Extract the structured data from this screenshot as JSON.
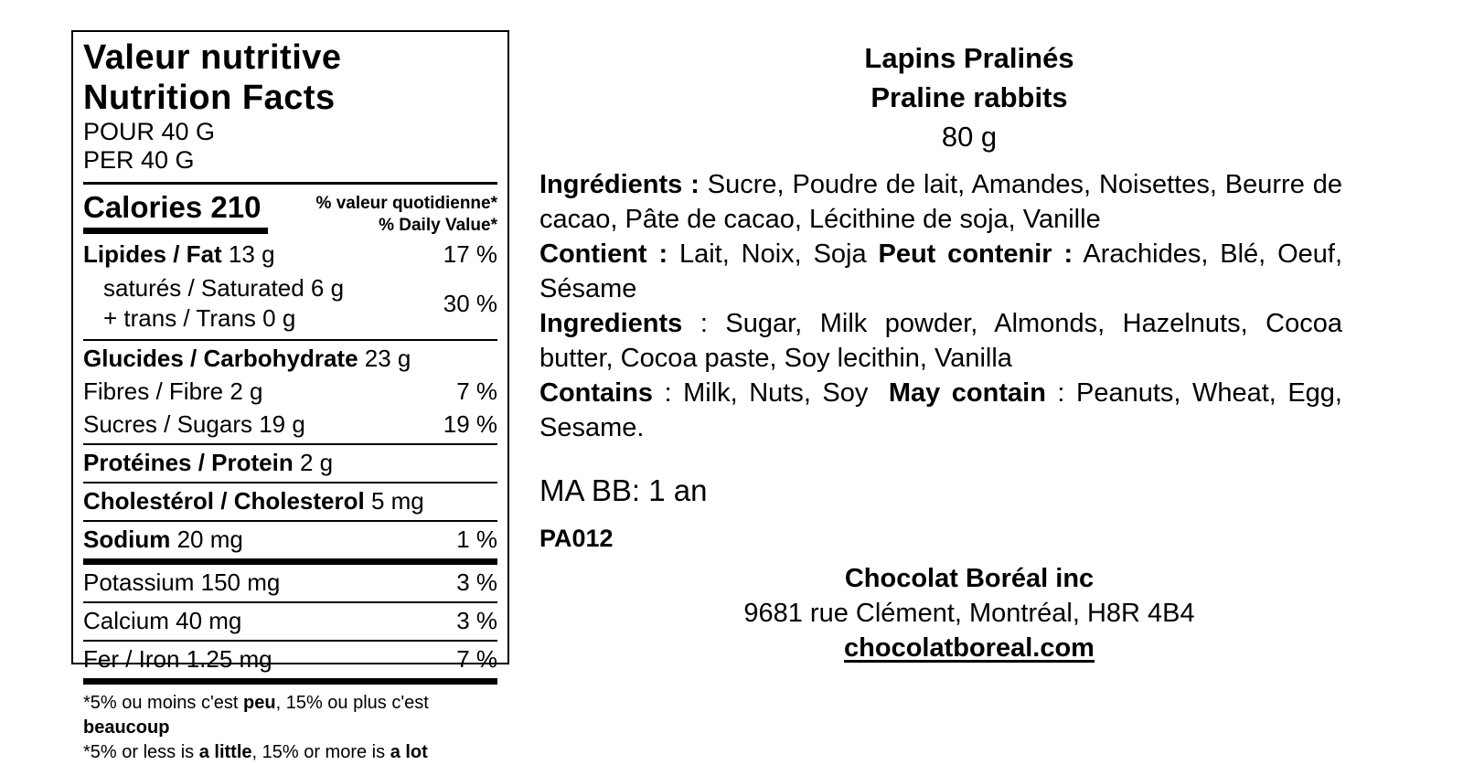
{
  "nutrition_label": {
    "title_fr": "Valeur nutritive",
    "title_en": "Nutrition Facts",
    "serving_fr": "POUR 40 G",
    "serving_en": "PER 40 G",
    "calories_label": "Calories",
    "calories_value": "210",
    "dv_header_fr": "% valeur quotidienne*",
    "dv_header_en": "% Daily Value*",
    "rows": {
      "fat": {
        "name": "Lipides / Fat",
        "amount": "13 g",
        "dv": "17 %"
      },
      "saturated": {
        "line1": "saturés / Saturated 6 g",
        "line2": "+ trans / Trans 0 g",
        "dv": "30 %"
      },
      "carbohydrate": {
        "name": "Glucides / Carbohydrate",
        "amount": "23 g"
      },
      "fibre": {
        "text": "Fibres / Fibre 2 g",
        "dv": "7 %"
      },
      "sugars": {
        "text": "Sucres / Sugars 19 g",
        "dv": "19 %"
      },
      "protein": {
        "name": "Protéines / Protein",
        "amount": "2 g"
      },
      "cholesterol": {
        "name": "Cholestérol / Cholesterol",
        "amount": "5 mg"
      },
      "sodium": {
        "name": "Sodium",
        "amount": "20 mg",
        "dv": "1 %"
      },
      "potassium": {
        "text": "Potassium 150 mg",
        "dv": "3 %"
      },
      "calcium": {
        "text": "Calcium 40 mg",
        "dv": "3 %"
      },
      "iron": {
        "text": "Fer / Iron 1.25 mg",
        "dv": "7 %"
      }
    },
    "footnote_fr": {
      "p1": "*5% ou moins c'est ",
      "b1": "peu",
      "p2": ", 15% ou plus c'est ",
      "b2": "beaucoup"
    },
    "footnote_en": {
      "p1": "*5% or less is ",
      "b1": "a little",
      "p2": ", 15% or more is ",
      "b2": "a lot"
    }
  },
  "product": {
    "name_fr": "Lapins Pralinés",
    "name_en": "Praline rabbits",
    "weight": "80 g",
    "ingredients_fr": {
      "lead": "Ingrédients :",
      "text": " Sucre, Poudre de lait, Amandes, Noisettes, Beurre de cacao, Pâte de cacao, Lécithine de soja, Vanille"
    },
    "allergens_fr": {
      "lead": "Contient :",
      "text": " Lait, Noix, Soja ",
      "lead2": "Peut contenir :",
      "text2": " Arachides, Blé, Oeuf, Sésame"
    },
    "ingredients_en": {
      "lead": "Ingredients",
      "text": " : Sugar, Milk powder, Almonds, Hazelnuts, Cocoa butter, Cocoa paste, Soy lecithin, Vanilla"
    },
    "allergens_en": {
      "lead": "Contains",
      "text": " : Milk, Nuts, Soy ",
      "lead2": "May contain",
      "text2": " : Peanuts, Wheat, Egg, Sesame."
    },
    "best_before": "MA BB: 1 an",
    "product_code": "PA012",
    "company": {
      "name": "Chocolat Boréal inc",
      "address": "9681 rue Clément, Montréal, H8R 4B4",
      "website": "chocolatboreal.com"
    }
  }
}
